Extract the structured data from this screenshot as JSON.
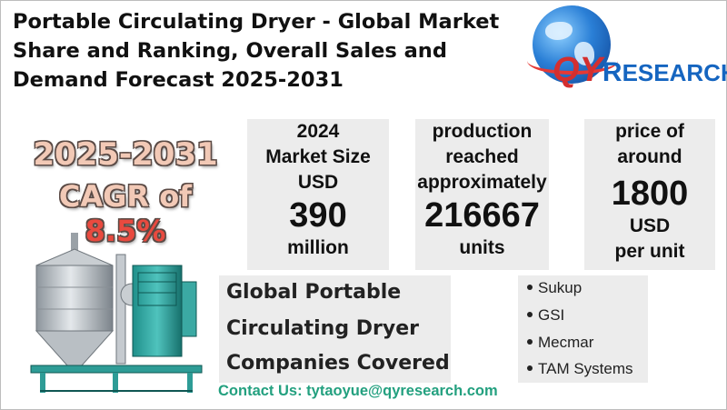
{
  "title_lines": [
    "Portable Circulating Dryer - Global Market",
    "Share and Ranking, Overall Sales and",
    "Demand Forecast 2025-2031"
  ],
  "logo": {
    "q": "Q",
    "y": "Y",
    "r": "R",
    "rest": "ESEARCH"
  },
  "cagr": {
    "years": "2025-2031",
    "label": "CAGR of ",
    "rate": "8.5%"
  },
  "stats": [
    {
      "lines": [
        "2024",
        "Market Size",
        "USD"
      ],
      "big": "390",
      "unit": "million"
    },
    {
      "lines": [
        "production",
        "reached",
        "approximately"
      ],
      "big": "216667",
      "unit": "units"
    },
    {
      "lines": [
        "price of",
        "around"
      ],
      "big": "1800",
      "unit_lines": [
        "USD",
        "per unit"
      ]
    }
  ],
  "companies_heading": [
    "Global Portable",
    "Circulating Dryer",
    "Companies Covered"
  ],
  "companies": [
    "Sukup",
    "GSI",
    "Mecmar",
    "TAM Systems"
  ],
  "contact": "Contact Us: tytaoyue@qyresearch.com",
  "colors": {
    "accent_red": "#e94a3f",
    "contact_green": "#23a07f",
    "logo_blue": "#1565c0",
    "logo_red": "#d32f2f"
  },
  "illustration": "portable-circulating-dryer-machine"
}
